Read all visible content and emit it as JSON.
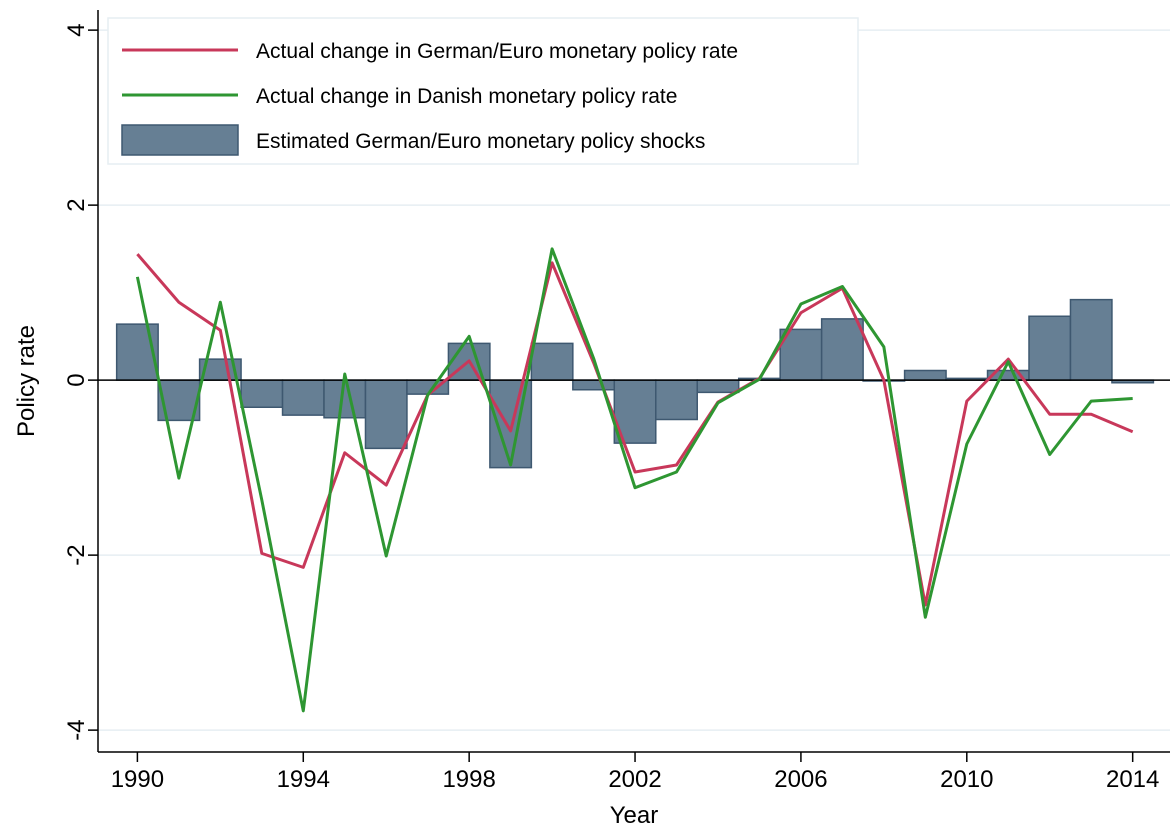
{
  "chart_data": {
    "type": "combo",
    "x_label": "Year",
    "y_label": "Policy rate",
    "x": [
      1990,
      1991,
      1992,
      1993,
      1994,
      1995,
      1996,
      1997,
      1998,
      1999,
      2000,
      2001,
      2002,
      2003,
      2004,
      2005,
      2006,
      2007,
      2008,
      2009,
      2010,
      2011,
      2012,
      2013,
      2014
    ],
    "series": [
      {
        "name": "Actual change in German/Euro monetary policy rate",
        "type": "line",
        "color": "#c8385a",
        "values": [
          1.44,
          0.89,
          0.57,
          -1.98,
          -2.14,
          -0.83,
          -1.2,
          -0.17,
          0.22,
          -0.58,
          1.34,
          0.2,
          -1.05,
          -0.97,
          -0.25,
          0.02,
          0.77,
          1.05,
          0.0,
          -2.57,
          -0.24,
          0.24,
          -0.39,
          -0.39,
          -0.59
        ]
      },
      {
        "name": "Actual change in Danish monetary policy rate",
        "type": "line",
        "color": "#2e9632",
        "values": [
          1.18,
          -1.12,
          0.89,
          -1.37,
          -3.78,
          0.07,
          -2.01,
          -0.17,
          0.5,
          -0.97,
          1.5,
          0.25,
          -1.23,
          -1.05,
          -0.26,
          0.01,
          0.87,
          1.07,
          0.38,
          -2.71,
          -0.73,
          0.21,
          -0.85,
          -0.24,
          -0.21
        ]
      },
      {
        "name": "Estimated German/Euro monetary policy shocks",
        "type": "bar",
        "color": "#667f94",
        "values": [
          0.64,
          -0.46,
          0.24,
          -0.31,
          -0.4,
          -0.43,
          -0.78,
          -0.16,
          0.42,
          -1.0,
          0.42,
          -0.11,
          -0.72,
          -0.45,
          -0.14,
          0.02,
          0.58,
          0.7,
          -0.01,
          0.11,
          0.02,
          0.11,
          0.73,
          0.92,
          -0.03
        ]
      }
    ],
    "xlim": [
      1989.05,
      2014.9
    ],
    "xticks": [
      1990,
      1994,
      1998,
      2002,
      2006,
      2010,
      2014
    ],
    "ylim": [
      -4.25,
      4.23
    ],
    "yticks": [
      -4,
      -2,
      0,
      2,
      4
    ],
    "grid": true,
    "legend": "top-left"
  }
}
